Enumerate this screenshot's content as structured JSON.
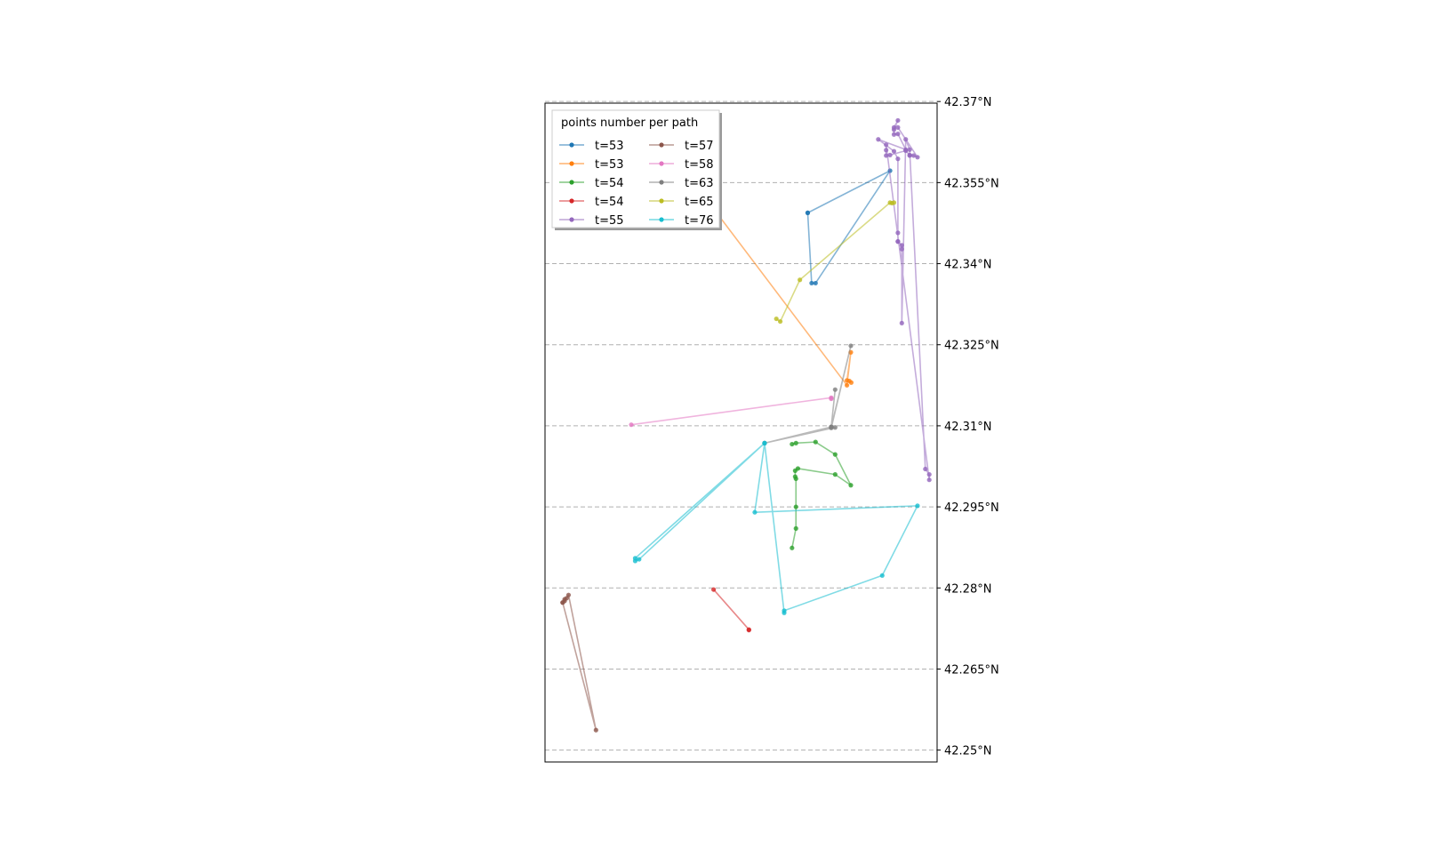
{
  "chart_data": {
    "type": "line",
    "title": "",
    "xlabel": "",
    "ylabel": "",
    "ylim": [
      42.2478,
      42.3697
    ],
    "xlim": [
      0,
      1
    ],
    "grid": "horizontal dashed",
    "legend": {
      "title": "points number per path",
      "position": "top-left",
      "ncol": 2
    },
    "yticks": [
      42.25,
      42.265,
      42.28,
      42.295,
      42.31,
      42.325,
      42.34,
      42.355,
      42.37
    ],
    "ytick_labels": [
      "42.25°N",
      "42.265°N",
      "42.28°N",
      "42.295°N",
      "42.31°N",
      "42.325°N",
      "42.34°N",
      "42.355°N",
      "42.37°N"
    ],
    "series": [
      {
        "name": "t=53",
        "color": "#1f77b4",
        "x": [
          0.67,
          0.88,
          0.69,
          0.68,
          0.67
        ],
        "y": [
          42.3494,
          42.3572,
          42.3364,
          42.3364,
          42.3494
        ]
      },
      {
        "name": "t=53",
        "color": "#ff7f0e",
        "x": [
          0.39,
          0.77,
          0.78,
          0.77,
          0.776,
          0.781
        ],
        "y": [
          42.354,
          42.3175,
          42.3236,
          42.3184,
          42.3183,
          42.318
        ]
      },
      {
        "name": "t=54",
        "color": "#2ca02c",
        "x": [
          0.63,
          0.64,
          0.69,
          0.74,
          0.78,
          0.74,
          0.645,
          0.638,
          0.638,
          0.64,
          0.64,
          0.64,
          0.63
        ],
        "y": [
          42.3066,
          42.3068,
          42.307,
          42.3047,
          42.299,
          42.301,
          42.3021,
          42.3017,
          42.3006,
          42.3002,
          42.295,
          42.291,
          42.2874
        ]
      },
      {
        "name": "t=54",
        "color": "#d62728",
        "x": [
          0.43,
          0.52,
          0.52
        ],
        "y": [
          42.2797,
          42.2723,
          42.2722
        ]
      },
      {
        "name": "t=55",
        "color": "#9467bd",
        "x": [
          0.89,
          0.9,
          0.89,
          0.89,
          0.9,
          0.92,
          0.85,
          0.89,
          0.9,
          0.9,
          0.9,
          0.9,
          0.91,
          0.91,
          0.91,
          0.92,
          0.93,
          0.97,
          0.98,
          0.98,
          0.87,
          0.87,
          0.87,
          0.88,
          0.92,
          0.93,
          0.93,
          0.94,
          0.95,
          0.9
        ],
        "y": [
          42.3652,
          42.3665,
          42.3648,
          42.3639,
          42.364,
          42.3611,
          42.363,
          42.3608,
          42.3594,
          42.3457,
          42.3441,
          42.3441,
          42.3434,
          42.3427,
          42.329,
          42.363,
          42.3611,
          42.302,
          42.301,
          42.3,
          42.362,
          42.361,
          42.36,
          42.3601,
          42.3609,
          42.3601,
          42.36,
          42.36,
          42.3597,
          42.3652
        ]
      },
      {
        "name": "t=57",
        "color": "#8c564b",
        "x": [
          0.045,
          0.05,
          0.05,
          0.055,
          0.06,
          0.13,
          0.045
        ],
        "y": [
          42.2773,
          42.2776,
          42.2779,
          42.2781,
          42.2787,
          42.2537,
          42.2773
        ]
      },
      {
        "name": "t=58",
        "color": "#e377c2",
        "x": [
          0.22,
          0.73,
          0.73
        ],
        "y": [
          42.3102,
          42.3152,
          42.315
        ]
      },
      {
        "name": "t=63",
        "color": "#7f7f7f",
        "x": [
          0.56,
          0.73,
          0.74,
          0.73,
          0.78,
          0.73,
          0.74,
          0.56
        ],
        "y": [
          42.3068,
          42.3098,
          42.3167,
          42.3098,
          42.3248,
          42.3096,
          42.3097,
          42.3068
        ]
      },
      {
        "name": "t=65",
        "color": "#bcbd22",
        "x": [
          0.59,
          0.6,
          0.65,
          0.88,
          0.885,
          0.89
        ],
        "y": [
          42.3298,
          42.3293,
          42.337,
          42.3513,
          42.3512,
          42.3513
        ]
      },
      {
        "name": "t=76",
        "color": "#17becf",
        "x": [
          0.23,
          0.56,
          0.535,
          0.95,
          0.86,
          0.61,
          0.61,
          0.56,
          0.24,
          0.23
        ],
        "y": [
          42.2855,
          42.3068,
          42.294,
          42.2952,
          42.2823,
          42.2758,
          42.2754,
          42.3068,
          42.2853,
          42.285
        ]
      }
    ]
  }
}
